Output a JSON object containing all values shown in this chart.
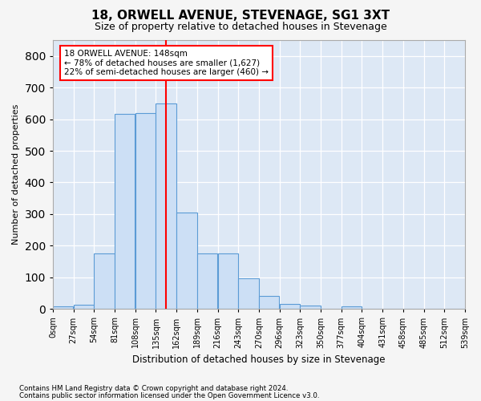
{
  "title": "18, ORWELL AVENUE, STEVENAGE, SG1 3XT",
  "subtitle": "Size of property relative to detached houses in Stevenage",
  "xlabel": "Distribution of detached houses by size in Stevenage",
  "ylabel": "Number of detached properties",
  "bar_color": "#ccdff5",
  "bar_edge_color": "#5b9bd5",
  "background_color": "#dde8f5",
  "grid_color": "#ffffff",
  "bin_labels": [
    "0sqm",
    "27sqm",
    "54sqm",
    "81sqm",
    "108sqm",
    "135sqm",
    "162sqm",
    "189sqm",
    "216sqm",
    "243sqm",
    "270sqm",
    "296sqm",
    "323sqm",
    "350sqm",
    "377sqm",
    "404sqm",
    "431sqm",
    "458sqm",
    "485sqm",
    "512sqm",
    "539sqm"
  ],
  "bar_values": [
    8,
    13,
    175,
    618,
    620,
    650,
    305,
    175,
    175,
    98,
    40,
    15,
    10,
    0,
    8,
    0,
    0,
    0,
    0,
    0
  ],
  "ylim": [
    0,
    850
  ],
  "yticks": [
    0,
    100,
    200,
    300,
    400,
    500,
    600,
    700,
    800
  ],
  "property_sqm": 148,
  "annotation_title": "18 ORWELL AVENUE: 148sqm",
  "annotation_line1": "← 78% of detached houses are smaller (1,627)",
  "annotation_line2": "22% of semi-detached houses are larger (460) →",
  "footer_line1": "Contains HM Land Registry data © Crown copyright and database right 2024.",
  "footer_line2": "Contains public sector information licensed under the Open Government Licence v3.0.",
  "bin_width": 27
}
